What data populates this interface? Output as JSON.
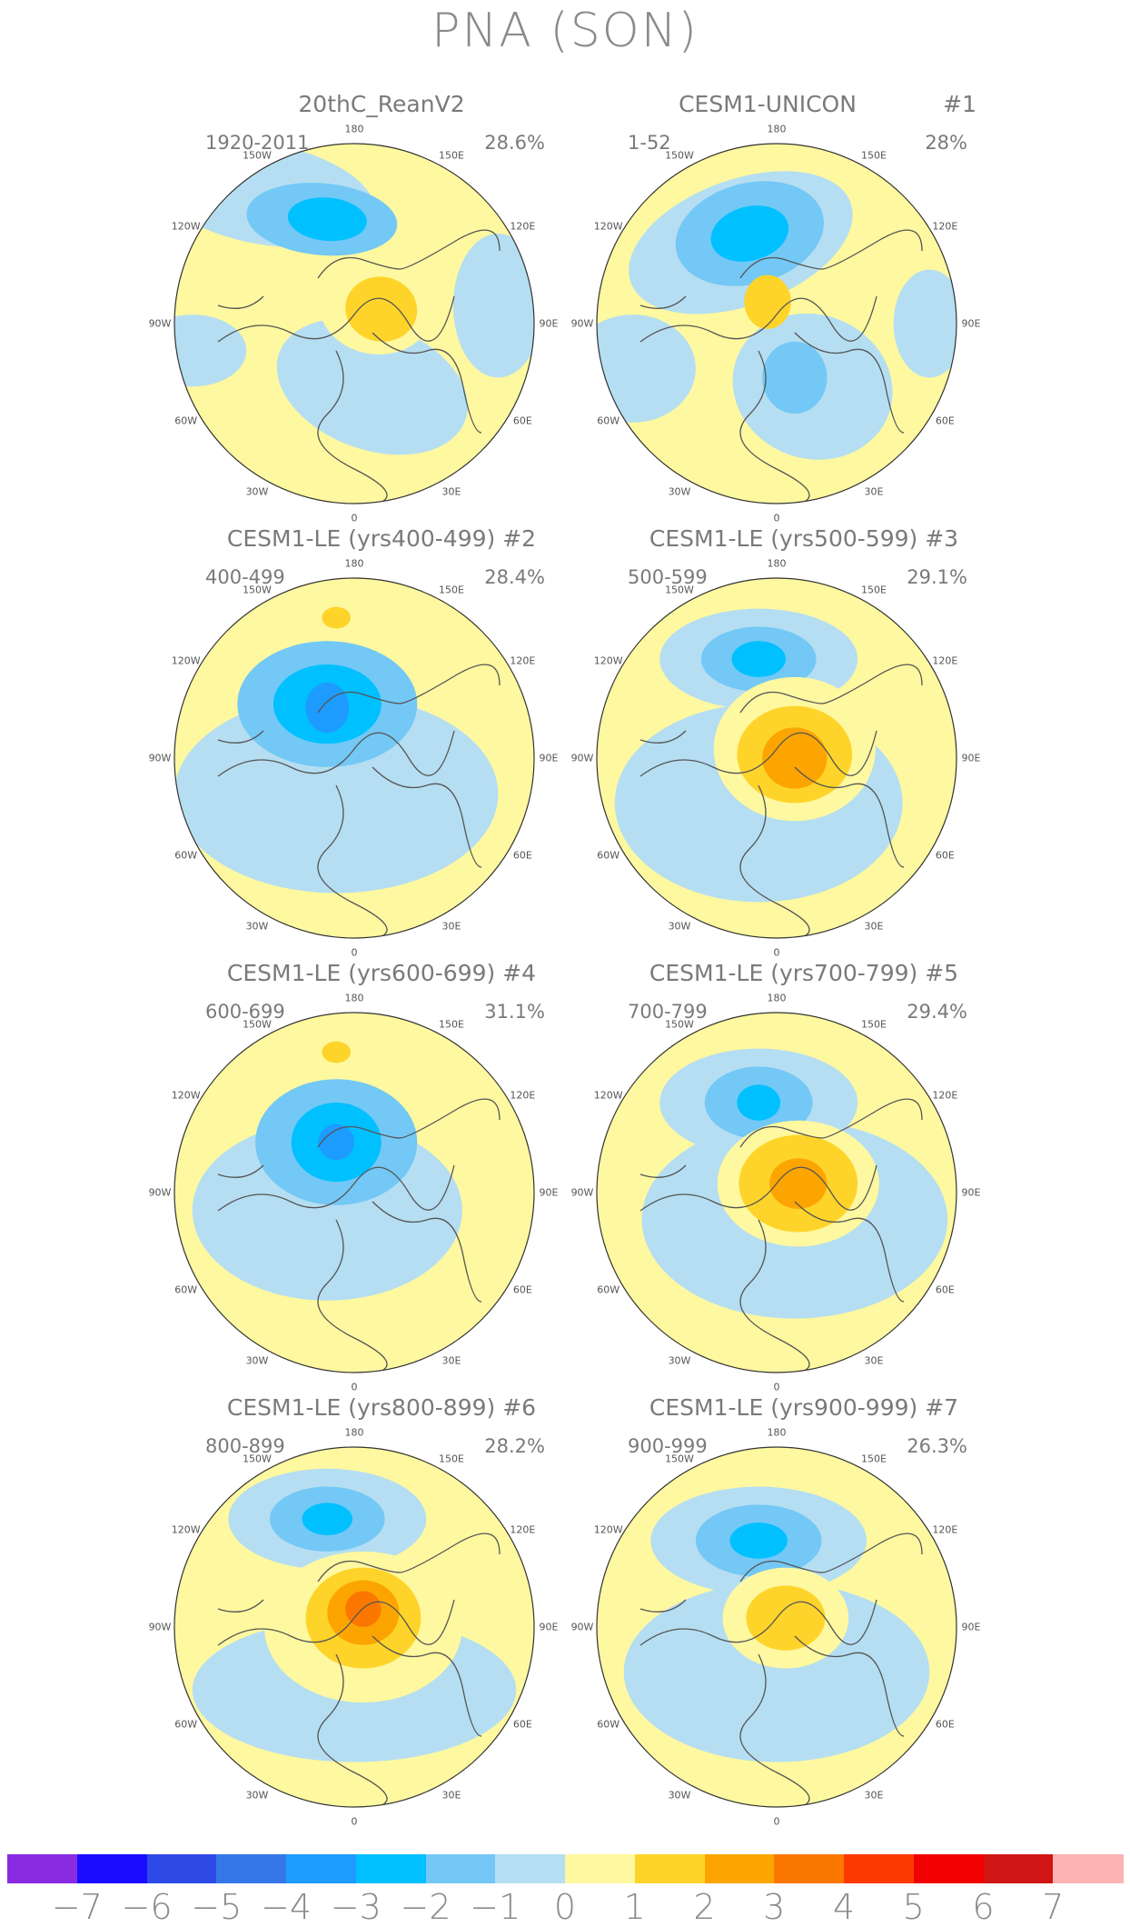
{
  "title": "PNA (SON)",
  "panels": [
    {
      "title": "20thC_ReanV2",
      "number": "",
      "period": "1920-2011",
      "variance": "28.6%"
    },
    {
      "title": "CESM1-UNICON",
      "number": "#1",
      "period": "1-52",
      "variance": "28%"
    },
    {
      "title": "CESM1-LE (yrs400-499) #2",
      "number": "",
      "period": "400-499",
      "variance": "28.4%"
    },
    {
      "title": "CESM1-LE (yrs500-599) #3",
      "number": "",
      "period": "500-599",
      "variance": "29.1%"
    },
    {
      "title": "CESM1-LE (yrs600-699) #4",
      "number": "",
      "period": "600-699",
      "variance": "31.1%"
    },
    {
      "title": "CESM1-LE (yrs700-799) #5",
      "number": "",
      "period": "700-799",
      "variance": "29.4%"
    },
    {
      "title": "CESM1-LE (yrs800-899) #6",
      "number": "",
      "period": "800-899",
      "variance": "28.2%"
    },
    {
      "title": "CESM1-LE (yrs900-999) #7",
      "number": "",
      "period": "900-999",
      "variance": "26.3%"
    }
  ],
  "longitude_labels": [
    "180",
    "150E",
    "120E",
    "90E",
    "60E",
    "30E",
    "0",
    "30W",
    "60W",
    "90W",
    "120W",
    "150W"
  ],
  "colorbar": {
    "colors": [
      "#8a2be2",
      "#1a0dff",
      "#2d4ae6",
      "#3577e8",
      "#1e9bff",
      "#00c0ff",
      "#73c8f5",
      "#b5def2",
      "#fef8a0",
      "#fed42a",
      "#fca500",
      "#fc7700",
      "#fc3a00",
      "#f00000",
      "#d01515",
      "#fbb3b3"
    ],
    "labels": [
      "-7",
      "-6",
      "-5",
      "-4",
      "-3",
      "-2",
      "-1",
      "0",
      "1",
      "2",
      "3",
      "4",
      "5",
      "6",
      "7"
    ]
  }
}
